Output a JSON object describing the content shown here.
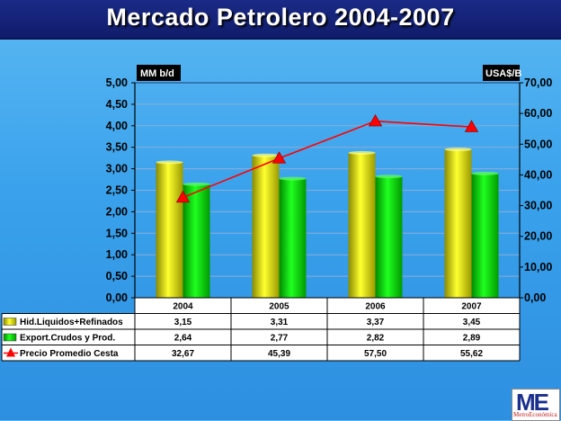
{
  "title": "Mercado Petrolero 2004-2007",
  "chart_data": {
    "type": "bar",
    "categories": [
      "2004",
      "2005",
      "2006",
      "2007"
    ],
    "series": [
      {
        "name": "Hid.Liquidos+Refinados",
        "type": "bar",
        "axis": "left",
        "color": "#e6e600",
        "values": [
          3.15,
          3.31,
          3.37,
          3.45
        ],
        "labels": [
          "3,15",
          "3,31",
          "3,37",
          "3,45"
        ]
      },
      {
        "name": "Export.Crudos y Prod.",
        "type": "bar",
        "axis": "left",
        "color": "#00cc00",
        "values": [
          2.64,
          2.77,
          2.82,
          2.89
        ],
        "labels": [
          "2,64",
          "2,77",
          "2,82",
          "2,89"
        ]
      },
      {
        "name": "Precio Promedio Cesta",
        "type": "line",
        "axis": "right",
        "color": "#ff0000",
        "marker": "triangle",
        "values": [
          32.67,
          45.39,
          57.5,
          55.62
        ],
        "labels": [
          "32,67",
          "45,39",
          "57,50",
          "55,62"
        ]
      }
    ],
    "left_axis": {
      "label": "MM b/d",
      "ylim": [
        0,
        5
      ],
      "ticks": [
        "0,00",
        "0,50",
        "1,00",
        "1,50",
        "2,00",
        "2,50",
        "3,00",
        "3,50",
        "4,00",
        "4,50",
        "5,00"
      ]
    },
    "right_axis": {
      "label": "USA$/B",
      "ylim": [
        0,
        70
      ],
      "ticks": [
        "0,00",
        "10,00",
        "20,00",
        "30,00",
        "40,00",
        "50,00",
        "60,00",
        "70,00"
      ]
    },
    "grid": true,
    "legend": "data-table"
  },
  "logo": {
    "mark": "ME",
    "name": "MetroEconómica"
  }
}
